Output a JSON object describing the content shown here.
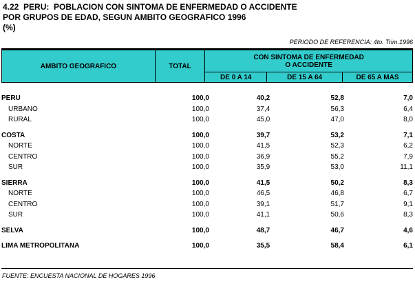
{
  "title": {
    "line1": "4.22  PERU:  POBLACION CON SINTOMA DE ENFERMEDAD O ACCIDENTE",
    "line2": "POR GRUPOS DE EDAD, SEGUN AMBITO GEOGRAFICO 1996",
    "line3": "(%)"
  },
  "period": "PERIODO DE REFERENCIA: 4to. Trim.1996",
  "header": {
    "ambito": "AMBITO GEOGRAFICO",
    "total": "TOTAL",
    "group_line1": "CON SINTOMA DE ENFERMEDAD",
    "group_line2": "O ACCIDENTE",
    "col1": "DE 0 A 14",
    "col2": "DE 15 A 64",
    "col3": "DE 65 A MAS"
  },
  "rows": [
    {
      "label": "PERU",
      "total": "100,0",
      "a": "40,2",
      "b": "52,8",
      "c": "7,0"
    },
    {
      "label": "URBANO",
      "total": "100,0",
      "a": "37,4",
      "b": "56,3",
      "c": "6,4"
    },
    {
      "label": "RURAL",
      "total": "100,0",
      "a": "45,0",
      "b": "47,0",
      "c": "8,0"
    },
    {
      "label": "COSTA",
      "total": "100,0",
      "a": "39,7",
      "b": "53,2",
      "c": "7,1"
    },
    {
      "label": "NORTE",
      "total": "100,0",
      "a": "41,5",
      "b": "52,3",
      "c": "6,2"
    },
    {
      "label": "CENTRO",
      "total": "100,0",
      "a": "36,9",
      "b": "55,2",
      "c": "7,9"
    },
    {
      "label": "SUR",
      "total": "100,0",
      "a": "35,9",
      "b": "53,0",
      "c": "11,1"
    },
    {
      "label": "SIERRA",
      "total": "100,0",
      "a": "41,5",
      "b": "50,2",
      "c": "8,3"
    },
    {
      "label": "NORTE",
      "total": "100,0",
      "a": "46,5",
      "b": "46,8",
      "c": "6,7"
    },
    {
      "label": "CENTRO",
      "total": "100,0",
      "a": "39,1",
      "b": "51,7",
      "c": "9,1"
    },
    {
      "label": "SUR",
      "total": "100,0",
      "a": "41,1",
      "b": "50,6",
      "c": "8,3"
    },
    {
      "label": "SELVA",
      "total": "100,0",
      "a": "48,7",
      "b": "46,7",
      "c": "4,6"
    },
    {
      "label": "LIMA METROPOLITANA",
      "total": "100,0",
      "a": "35,5",
      "b": "58,4",
      "c": "6,1"
    }
  ],
  "source": "FUENTE: ENCUESTA NACIONAL DE HOGARES 1996"
}
